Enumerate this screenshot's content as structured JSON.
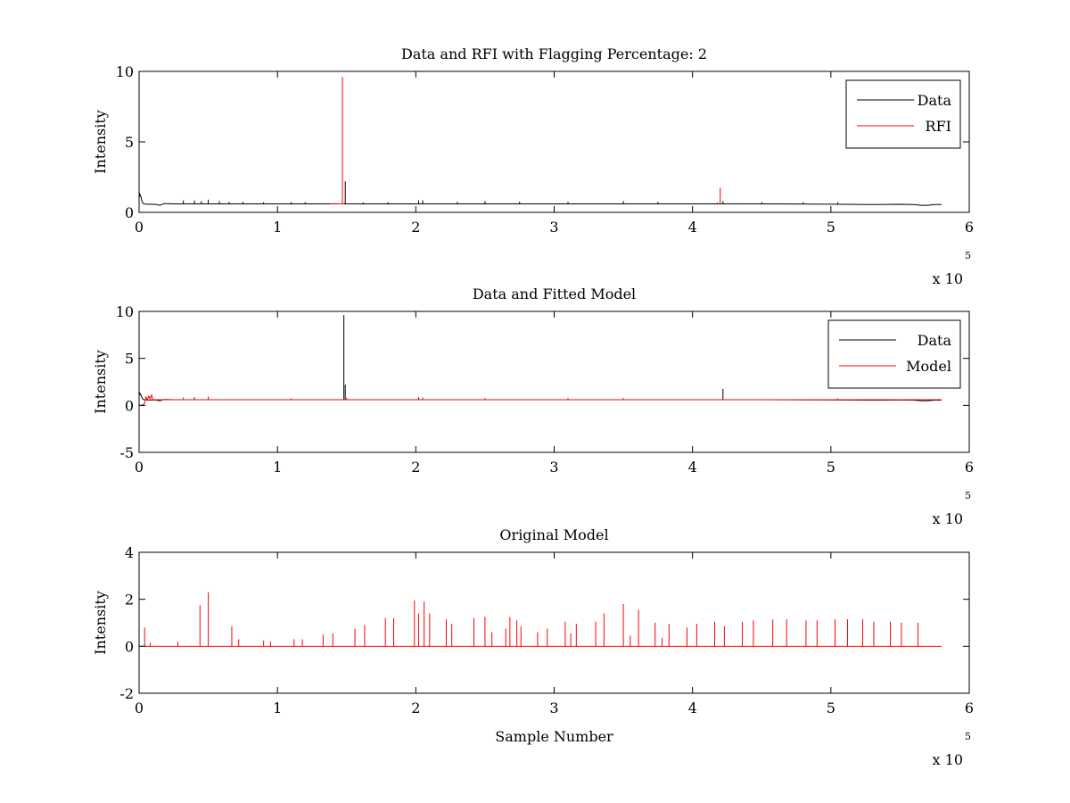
{
  "figure": {
    "background": "#ffffff",
    "axes_color": "#000000"
  },
  "chart_data": [
    {
      "type": "line",
      "title": "Data and RFI with Flagging Percentage: 2",
      "xlabel": "",
      "ylabel": "Intensity",
      "xlim": [
        0,
        6
      ],
      "ylim": [
        0,
        10
      ],
      "x_multiplier": "x 10",
      "x_multiplier_exponent": "5",
      "xticks": [
        "0",
        "1",
        "2",
        "3",
        "4",
        "5",
        "6"
      ],
      "yticks": [
        "0",
        "5",
        "10"
      ],
      "legend_position": "top-right",
      "legend": [
        {
          "label": "Data",
          "color": "#000000"
        },
        {
          "label": "RFI",
          "color": "#ff0000"
        }
      ],
      "series": [
        {
          "name": "Data",
          "color": "#000000",
          "x": [
            0,
            0.005,
            0.01,
            0.015,
            0.02,
            0.03,
            0.05,
            0.08,
            0.12,
            0.15,
            0.18,
            0.2,
            0.25,
            0.5,
            1.0,
            1.3,
            1.45,
            1.5,
            2.0,
            2.5,
            3.0,
            3.5,
            4.0,
            4.5,
            5.0,
            5.3,
            5.5,
            5.6,
            5.65,
            5.7,
            5.75,
            5.8
          ],
          "y": [
            1.0,
            1.3,
            1.2,
            1.05,
            0.8,
            0.62,
            0.58,
            0.58,
            0.57,
            0.5,
            0.62,
            0.62,
            0.6,
            0.6,
            0.6,
            0.6,
            0.6,
            0.6,
            0.6,
            0.6,
            0.6,
            0.6,
            0.6,
            0.6,
            0.58,
            0.55,
            0.57,
            0.55,
            0.5,
            0.5,
            0.55,
            0.55
          ],
          "spikes": [
            {
              "x": 0.32,
              "y": 0.85
            },
            {
              "x": 0.4,
              "y": 0.85
            },
            {
              "x": 0.45,
              "y": 0.8
            },
            {
              "x": 0.5,
              "y": 0.9
            },
            {
              "x": 0.58,
              "y": 0.8
            },
            {
              "x": 0.65,
              "y": 0.75
            },
            {
              "x": 0.75,
              "y": 0.75
            },
            {
              "x": 0.9,
              "y": 0.72
            },
            {
              "x": 1.1,
              "y": 0.72
            },
            {
              "x": 1.2,
              "y": 0.72
            },
            {
              "x": 1.49,
              "y": 2.2
            },
            {
              "x": 1.62,
              "y": 0.7
            },
            {
              "x": 1.8,
              "y": 0.72
            },
            {
              "x": 2.02,
              "y": 0.85
            },
            {
              "x": 2.05,
              "y": 0.85
            },
            {
              "x": 2.3,
              "y": 0.75
            },
            {
              "x": 2.5,
              "y": 0.8
            },
            {
              "x": 2.75,
              "y": 0.75
            },
            {
              "x": 3.1,
              "y": 0.75
            },
            {
              "x": 3.5,
              "y": 0.8
            },
            {
              "x": 3.75,
              "y": 0.75
            },
            {
              "x": 4.22,
              "y": 0.8
            },
            {
              "x": 4.5,
              "y": 0.72
            },
            {
              "x": 4.8,
              "y": 0.72
            },
            {
              "x": 5.05,
              "y": 0.72
            }
          ]
        },
        {
          "name": "RFI",
          "color": "#ff0000",
          "x": [
            1.38,
            1.4,
            1.45,
            1.47,
            1.48
          ],
          "y": [
            0.6,
            0.62,
            0.6,
            0.6,
            0.6
          ],
          "spikes": [
            {
              "x": 1.47,
              "y": 9.6
            },
            {
              "x": 4.2,
              "y": 1.75
            },
            {
              "x": 4.18,
              "y": 0.7
            }
          ]
        }
      ]
    },
    {
      "type": "line",
      "title": "Data and Fitted Model",
      "xlabel": "",
      "ylabel": "Intensity",
      "xlim": [
        0,
        6
      ],
      "ylim": [
        -5,
        10
      ],
      "x_multiplier": "x 10",
      "x_multiplier_exponent": "5",
      "xticks": [
        "0",
        "1",
        "2",
        "3",
        "4",
        "5",
        "6"
      ],
      "yticks": [
        "-5",
        "0",
        "5",
        "10"
      ],
      "legend_position": "top-right",
      "legend": [
        {
          "label": "Data",
          "color": "#000000"
        },
        {
          "label": "Model",
          "color": "#ff0000"
        }
      ],
      "series": [
        {
          "name": "Data",
          "color": "#000000",
          "x": [
            0,
            0.005,
            0.01,
            0.015,
            0.02,
            0.03,
            0.05,
            0.08,
            0.12,
            0.15,
            0.18,
            0.2,
            0.25,
            0.5,
            1.0,
            1.5,
            2.0,
            2.5,
            3.0,
            3.5,
            4.0,
            4.5,
            5.0,
            5.3,
            5.5,
            5.6,
            5.65,
            5.7,
            5.75,
            5.8
          ],
          "y": [
            1.0,
            1.3,
            1.2,
            1.05,
            0.8,
            0.62,
            0.58,
            0.58,
            0.57,
            0.5,
            0.62,
            0.62,
            0.6,
            0.6,
            0.6,
            0.6,
            0.6,
            0.6,
            0.6,
            0.6,
            0.6,
            0.6,
            0.58,
            0.55,
            0.57,
            0.55,
            0.5,
            0.5,
            0.55,
            0.55
          ],
          "spikes": [
            {
              "x": 1.48,
              "y": 9.6
            },
            {
              "x": 1.49,
              "y": 2.2
            },
            {
              "x": 4.22,
              "y": 1.75
            },
            {
              "x": 0.4,
              "y": 0.85
            },
            {
              "x": 0.5,
              "y": 0.9
            },
            {
              "x": 2.02,
              "y": 0.85
            }
          ]
        },
        {
          "name": "Model",
          "color": "#ff0000",
          "x": [
            0,
            0.02,
            0.04,
            0.05,
            0.06,
            0.07,
            0.08,
            0.09,
            0.1,
            0.15,
            0.5,
            1.0,
            2.0,
            3.0,
            4.0,
            5.0,
            5.8
          ],
          "y": [
            0.0,
            0.0,
            0.2,
            0.9,
            0.6,
            1.0,
            0.7,
            1.1,
            0.6,
            0.6,
            0.6,
            0.6,
            0.6,
            0.6,
            0.6,
            0.6,
            0.6
          ],
          "spikes": [
            {
              "x": 0.32,
              "y": 0.85
            },
            {
              "x": 0.5,
              "y": 0.9
            },
            {
              "x": 1.1,
              "y": 0.75
            },
            {
              "x": 1.5,
              "y": 0.8
            },
            {
              "x": 2.05,
              "y": 0.85
            },
            {
              "x": 2.5,
              "y": 0.8
            },
            {
              "x": 3.1,
              "y": 0.8
            },
            {
              "x": 3.5,
              "y": 0.8
            },
            {
              "x": 4.22,
              "y": 0.75
            },
            {
              "x": 5.05,
              "y": 0.75
            }
          ]
        }
      ]
    },
    {
      "type": "line",
      "title": "Original Model",
      "xlabel": "Sample Number",
      "ylabel": "Intensity",
      "xlim": [
        0,
        6
      ],
      "ylim": [
        -2,
        4
      ],
      "x_multiplier": "x 10",
      "x_multiplier_exponent": "5",
      "xticks": [
        "0",
        "1",
        "2",
        "3",
        "4",
        "5",
        "6"
      ],
      "yticks": [
        "-2",
        "0",
        "2",
        "4"
      ],
      "series": [
        {
          "color": "#ff0000",
          "x": [
            0,
            5.8
          ],
          "y": [
            0,
            0
          ],
          "spikes": [
            {
              "x": 0.04,
              "y": 0.8
            },
            {
              "x": 0.08,
              "y": 0.15
            },
            {
              "x": 0.28,
              "y": 0.2
            },
            {
              "x": 0.44,
              "y": 1.75
            },
            {
              "x": 0.5,
              "y": 2.3
            },
            {
              "x": 0.67,
              "y": 0.85
            },
            {
              "x": 0.72,
              "y": 0.3
            },
            {
              "x": 0.9,
              "y": 0.25
            },
            {
              "x": 0.95,
              "y": 0.2
            },
            {
              "x": 1.12,
              "y": 0.3
            },
            {
              "x": 1.18,
              "y": 0.3
            },
            {
              "x": 1.33,
              "y": 0.5
            },
            {
              "x": 1.4,
              "y": 0.55
            },
            {
              "x": 1.56,
              "y": 0.75
            },
            {
              "x": 1.63,
              "y": 0.9
            },
            {
              "x": 1.78,
              "y": 1.2
            },
            {
              "x": 1.84,
              "y": 1.2
            },
            {
              "x": 1.99,
              "y": 1.95
            },
            {
              "x": 2.02,
              "y": 1.4
            },
            {
              "x": 2.06,
              "y": 1.9
            },
            {
              "x": 2.1,
              "y": 1.4
            },
            {
              "x": 2.22,
              "y": 1.15
            },
            {
              "x": 2.26,
              "y": 0.95
            },
            {
              "x": 2.42,
              "y": 1.2
            },
            {
              "x": 2.5,
              "y": 1.25
            },
            {
              "x": 2.55,
              "y": 0.6
            },
            {
              "x": 2.65,
              "y": 0.75
            },
            {
              "x": 2.68,
              "y": 1.25
            },
            {
              "x": 2.73,
              "y": 1.1
            },
            {
              "x": 2.76,
              "y": 0.85
            },
            {
              "x": 2.88,
              "y": 0.6
            },
            {
              "x": 2.95,
              "y": 0.75
            },
            {
              "x": 3.08,
              "y": 1.05
            },
            {
              "x": 3.12,
              "y": 0.55
            },
            {
              "x": 3.16,
              "y": 0.95
            },
            {
              "x": 3.3,
              "y": 1.05
            },
            {
              "x": 3.36,
              "y": 1.4
            },
            {
              "x": 3.5,
              "y": 1.8
            },
            {
              "x": 3.55,
              "y": 0.45
            },
            {
              "x": 3.61,
              "y": 1.55
            },
            {
              "x": 3.73,
              "y": 1.0
            },
            {
              "x": 3.78,
              "y": 0.35
            },
            {
              "x": 3.83,
              "y": 0.95
            },
            {
              "x": 3.96,
              "y": 0.8
            },
            {
              "x": 4.03,
              "y": 0.95
            },
            {
              "x": 4.16,
              "y": 1.05
            },
            {
              "x": 4.23,
              "y": 0.85
            },
            {
              "x": 4.36,
              "y": 1.05
            },
            {
              "x": 4.44,
              "y": 1.1
            },
            {
              "x": 4.58,
              "y": 1.15
            },
            {
              "x": 4.68,
              "y": 1.15
            },
            {
              "x": 4.82,
              "y": 1.1
            },
            {
              "x": 4.9,
              "y": 1.1
            },
            {
              "x": 5.03,
              "y": 1.15
            },
            {
              "x": 5.12,
              "y": 1.15
            },
            {
              "x": 5.23,
              "y": 1.15
            },
            {
              "x": 5.31,
              "y": 1.05
            },
            {
              "x": 5.43,
              "y": 1.05
            },
            {
              "x": 5.51,
              "y": 1.0
            },
            {
              "x": 5.63,
              "y": 1.0
            }
          ]
        }
      ]
    }
  ]
}
